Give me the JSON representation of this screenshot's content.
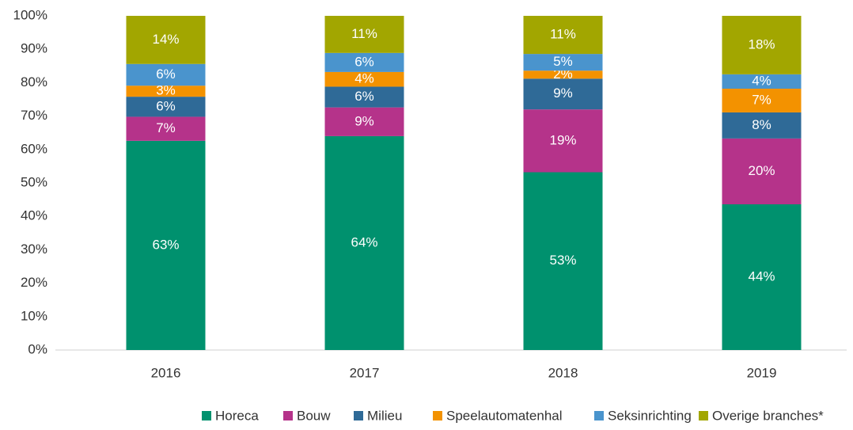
{
  "chart_data": {
    "type": "stacked-bar",
    "categories": [
      "2016",
      "2017",
      "2018",
      "2019"
    ],
    "series": [
      {
        "name": "Horeca",
        "color": "#00916e",
        "values": [
          62.6,
          64.0,
          53.2,
          43.6
        ],
        "value_labels": [
          "63%",
          "64%",
          "53%",
          "44%"
        ]
      },
      {
        "name": "Bouw",
        "color": "#b5338a",
        "values": [
          7.2,
          8.6,
          18.8,
          19.7
        ],
        "value_labels": [
          "7%",
          "9%",
          "19%",
          "20%"
        ]
      },
      {
        "name": "Milieu",
        "color": "#2f6a97",
        "values": [
          6.0,
          6.2,
          9.2,
          7.8
        ],
        "value_labels": [
          "6%",
          "6%",
          "9%",
          "8%"
        ]
      },
      {
        "name": "Speelautomatenhal",
        "color": "#f39200",
        "values": [
          3.3,
          4.4,
          2.4,
          7.1
        ],
        "value_labels": [
          "3%",
          "4%",
          "2%",
          "7%"
        ]
      },
      {
        "name": "Seksinrichting",
        "color": "#4a94cd",
        "values": [
          6.5,
          5.7,
          5.0,
          4.3
        ],
        "value_labels": [
          "6%",
          "6%",
          "5%",
          "4%"
        ]
      },
      {
        "name": "Overige branches*",
        "color": "#a2a600",
        "values": [
          14.4,
          11.1,
          11.4,
          17.5
        ],
        "value_labels": [
          "14%",
          "11%",
          "11%",
          "18%"
        ]
      }
    ],
    "ylim": [
      0,
      100
    ],
    "yticks": [
      {
        "value": 0,
        "label": "0%"
      },
      {
        "value": 10,
        "label": "10%"
      },
      {
        "value": 20,
        "label": "20%"
      },
      {
        "value": 30,
        "label": "30%"
      },
      {
        "value": 40,
        "label": "40%"
      },
      {
        "value": 50,
        "label": "50%"
      },
      {
        "value": 60,
        "label": "60%"
      },
      {
        "value": 70,
        "label": "70%"
      },
      {
        "value": 80,
        "label": "80%"
      },
      {
        "value": 90,
        "label": "90%"
      },
      {
        "value": 100,
        "label": "100%"
      }
    ],
    "grid": false,
    "legend": "bottom"
  }
}
